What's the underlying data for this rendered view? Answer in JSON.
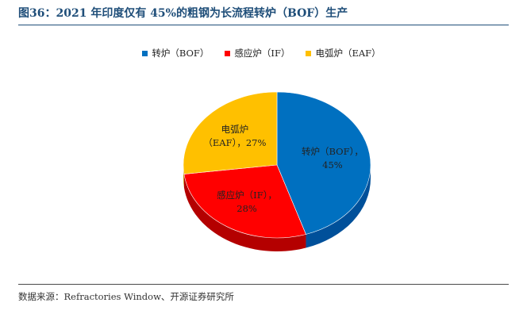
{
  "title": "图36：2021 年印度仅有 45%的粗钢为长流程转炉（BOF）生产",
  "source": "数据来源：Refractories Window、开源证券研究所",
  "chart_data": {
    "type": "pie",
    "slices": [
      {
        "name": "转炉（BOF）",
        "value": 45,
        "color": "#0070c0",
        "side_color": "#00509a",
        "label_lines": [
          "转炉（BOF），",
          "45%"
        ]
      },
      {
        "name": "感应炉（IF）",
        "value": 28,
        "color": "#ff0000",
        "side_color": "#b40000",
        "label_lines": [
          "感应炉（IF），",
          "28%"
        ]
      },
      {
        "name": "电弧炉（EAF）",
        "value": 27,
        "color": "#ffc000",
        "side_color": "#c08f00",
        "label_lines": [
          "电弧炉",
          "（EAF），27%"
        ]
      }
    ],
    "start_angle_deg": 0,
    "direction": "clockwise",
    "three_d": true,
    "legend_position": "top"
  }
}
